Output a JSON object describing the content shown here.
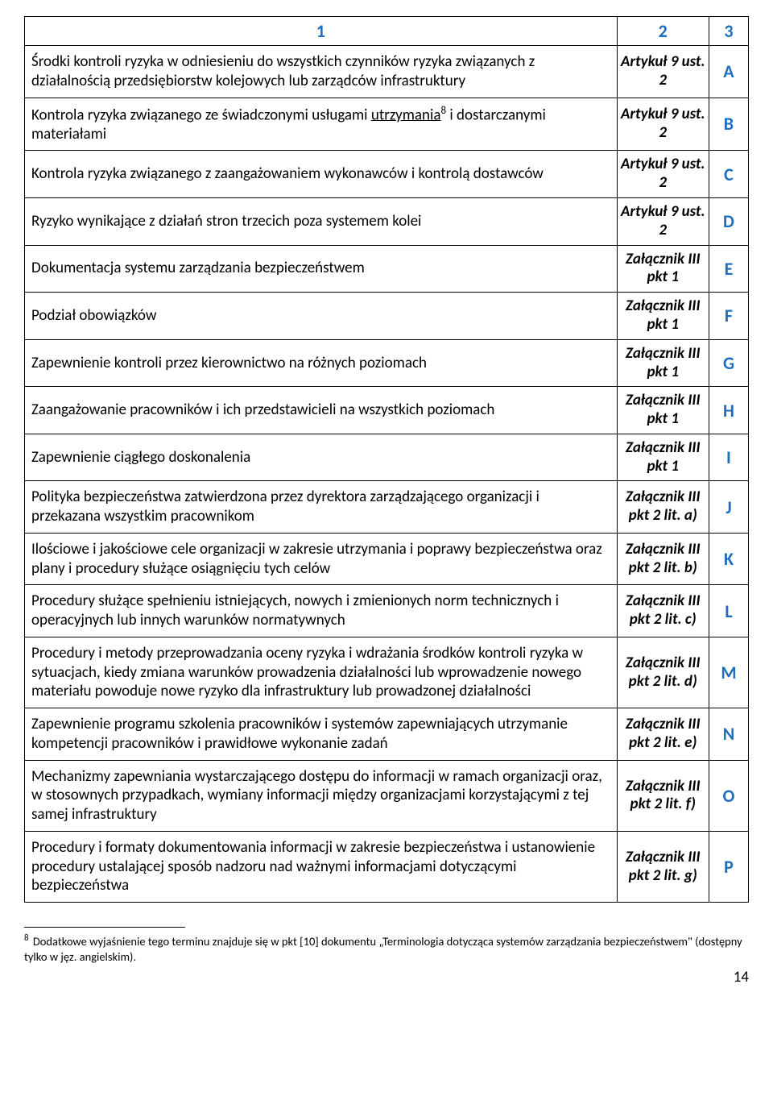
{
  "colors": {
    "accent": "#1f6fc1",
    "text": "#000000",
    "border": "#000000",
    "background": "#ffffff"
  },
  "header": {
    "c1": "1",
    "c2": "2",
    "c3": "3"
  },
  "rows": [
    {
      "desc": "Środki kontroli ryzyka w odniesieniu do wszystkich czynników ryzyka związanych z działalnością przedsiębiorstw kolejowych lub zarządców infrastruktury",
      "ref": "Artykuł 9 ust. 2",
      "code": "A"
    },
    {
      "desc_pre": "Kontrola ryzyka związanego ze świadczonymi usługami ",
      "desc_underlined": "utrzymania",
      "desc_sup": "8",
      "desc_post": " i dostarczanymi materiałami",
      "ref": "Artykuł 9 ust. 2",
      "code": "B"
    },
    {
      "desc": "Kontrola ryzyka związanego z zaangażowaniem wykonawców i kontrolą dostawców",
      "ref": "Artykuł 9 ust. 2",
      "code": "C"
    },
    {
      "desc": "Ryzyko wynikające z działań stron trzecich poza systemem kolei",
      "ref": "Artykuł 9 ust. 2",
      "code": "D"
    },
    {
      "desc": "Dokumentacja systemu zarządzania bezpieczeństwem",
      "ref": "Załącznik III pkt 1",
      "code": "E"
    },
    {
      "desc": "Podział obowiązków",
      "ref": "Załącznik III pkt 1",
      "code": "F"
    },
    {
      "desc": "Zapewnienie kontroli przez kierownictwo na różnych poziomach",
      "ref": "Załącznik III pkt 1",
      "code": "G"
    },
    {
      "desc": "Zaangażowanie pracowników i ich przedstawicieli na wszystkich poziomach",
      "ref": "Załącznik III pkt 1",
      "code": "H"
    },
    {
      "desc": "Zapewnienie ciągłego doskonalenia",
      "ref": "Załącznik III pkt 1",
      "code": "I"
    },
    {
      "desc": "Polityka bezpieczeństwa zatwierdzona przez dyrektora zarządzającego organizacji i przekazana wszystkim pracownikom",
      "ref": "Załącznik III pkt 2 lit. a)",
      "code": "J"
    },
    {
      "desc": "Ilościowe i jakościowe cele organizacji w zakresie utrzymania i poprawy bezpieczeństwa oraz plany i procedury służące osiągnięciu tych celów",
      "ref": "Załącznik III pkt 2 lit. b)",
      "code": "K"
    },
    {
      "desc": "Procedury służące spełnieniu istniejących, nowych i zmienionych norm technicznych i operacyjnych lub innych warunków normatywnych",
      "ref": "Załącznik III pkt 2 lit. c)",
      "code": "L"
    },
    {
      "desc": "Procedury i metody przeprowadzania oceny ryzyka i wdrażania środków kontroli ryzyka w sytuacjach, kiedy zmiana warunków prowadzenia działalności lub wprowadzenie nowego materiału powoduje nowe ryzyko dla infrastruktury lub prowadzonej działalności",
      "ref": "Załącznik III pkt 2 lit. d)",
      "code": "M"
    },
    {
      "desc": "Zapewnienie programu szkolenia pracowników i systemów zapewniających utrzymanie kompetencji pracowników i prawidłowe wykonanie zadań",
      "ref": "Załącznik III pkt 2 lit. e)",
      "code": "N"
    },
    {
      "desc": "Mechanizmy zapewniania wystarczającego dostępu do informacji w ramach organizacji oraz, w stosownych przypadkach, wymiany informacji między organizacjami korzystającymi z tej samej infrastruktury",
      "ref": "Załącznik III pkt 2 lit. f)",
      "code": "O"
    },
    {
      "desc": "Procedury i formaty dokumentowania informacji w zakresie bezpieczeństwa i ustanowienie procedury ustalającej sposób nadzoru nad ważnymi informacjami dotyczącymi bezpieczeństwa",
      "ref": "Załącznik III pkt 2 lit. g)",
      "code": "P"
    }
  ],
  "footnote": {
    "num": "8",
    "text": " Dodatkowe wyjaśnienie tego terminu znajduje się w pkt [10] dokumentu „Terminologia dotycząca systemów zarządzania bezpieczeństwem\" (dostępny tylko w jęz. angielskim)."
  },
  "page_number": "14"
}
